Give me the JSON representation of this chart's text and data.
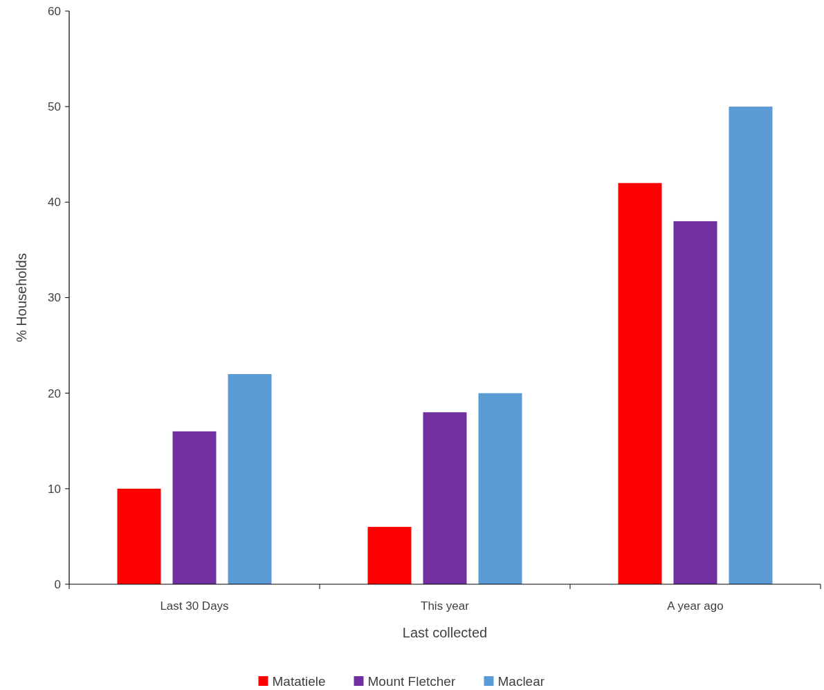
{
  "chart_data": {
    "type": "bar",
    "xlabel": "Last collected",
    "ylabel": "% Households",
    "categories": [
      "Last 30 Days",
      "This year",
      "A year ago"
    ],
    "series": [
      {
        "name": "Matatiele",
        "color": "#ff0000",
        "values": [
          10,
          6,
          42
        ]
      },
      {
        "name": "Mount Fletcher",
        "color": "#7030a0",
        "values": [
          16,
          18,
          38
        ]
      },
      {
        "name": "Maclear",
        "color": "#5b9bd5",
        "values": [
          22,
          20,
          50
        ]
      }
    ],
    "ylim": [
      0,
      60
    ],
    "yticks": [
      0,
      10,
      20,
      30,
      40,
      50,
      60
    ],
    "grid": false,
    "legend": "bottom"
  }
}
